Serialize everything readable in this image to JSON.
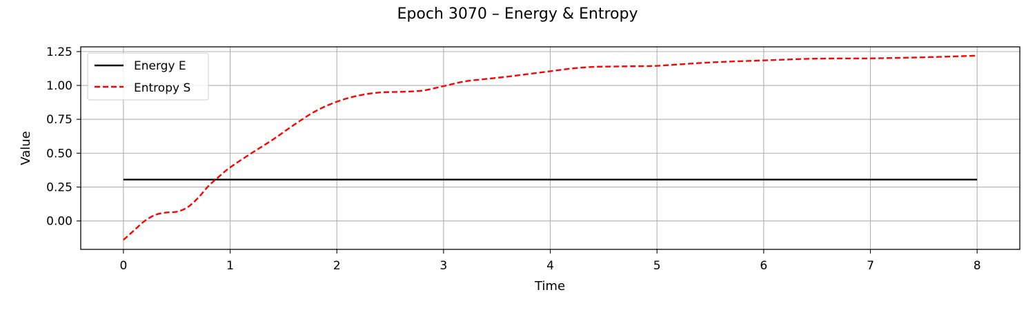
{
  "chart_data": {
    "type": "line",
    "title": "Epoch 3070 – Energy & Entropy",
    "xlabel": "Time",
    "ylabel": "Value",
    "xlim": [
      -0.4,
      8.4
    ],
    "ylim": [
      -0.21,
      1.285
    ],
    "xticks": [
      0,
      1,
      2,
      3,
      4,
      5,
      6,
      7,
      8
    ],
    "yticks": [
      0.0,
      0.25,
      0.5,
      0.75,
      1.0,
      1.25
    ],
    "xtick_labels": [
      "0",
      "1",
      "2",
      "3",
      "4",
      "5",
      "6",
      "7",
      "8"
    ],
    "ytick_labels": [
      "0.00",
      "0.25",
      "0.50",
      "0.75",
      "1.00",
      "1.25"
    ],
    "grid": true,
    "legend_position": "top-left",
    "series": [
      {
        "name": "Energy E",
        "color": "#000000",
        "style": "solid",
        "x": [
          0,
          8
        ],
        "y": [
          0.305,
          0.305
        ]
      },
      {
        "name": "Entropy S",
        "color": "#ff0000",
        "style": "dashed",
        "x": [
          0,
          0.1,
          0.2,
          0.3,
          0.4,
          0.5,
          0.6,
          0.7,
          0.8,
          0.9,
          1.0,
          1.2,
          1.4,
          1.6,
          1.8,
          2.0,
          2.2,
          2.4,
          2.6,
          2.8,
          3.0,
          3.2,
          3.4,
          3.6,
          3.8,
          4.0,
          4.2,
          4.4,
          4.6,
          4.8,
          5.0,
          5.5,
          6.0,
          6.5,
          7.0,
          7.5,
          8.0
        ],
        "y": [
          -0.14,
          -0.07,
          0.0,
          0.045,
          0.062,
          0.068,
          0.1,
          0.17,
          0.26,
          0.33,
          0.395,
          0.5,
          0.6,
          0.71,
          0.81,
          0.88,
          0.925,
          0.948,
          0.953,
          0.962,
          0.995,
          1.03,
          1.048,
          1.065,
          1.085,
          1.105,
          1.125,
          1.137,
          1.14,
          1.142,
          1.145,
          1.17,
          1.185,
          1.198,
          1.2,
          1.208,
          1.22
        ]
      }
    ]
  }
}
